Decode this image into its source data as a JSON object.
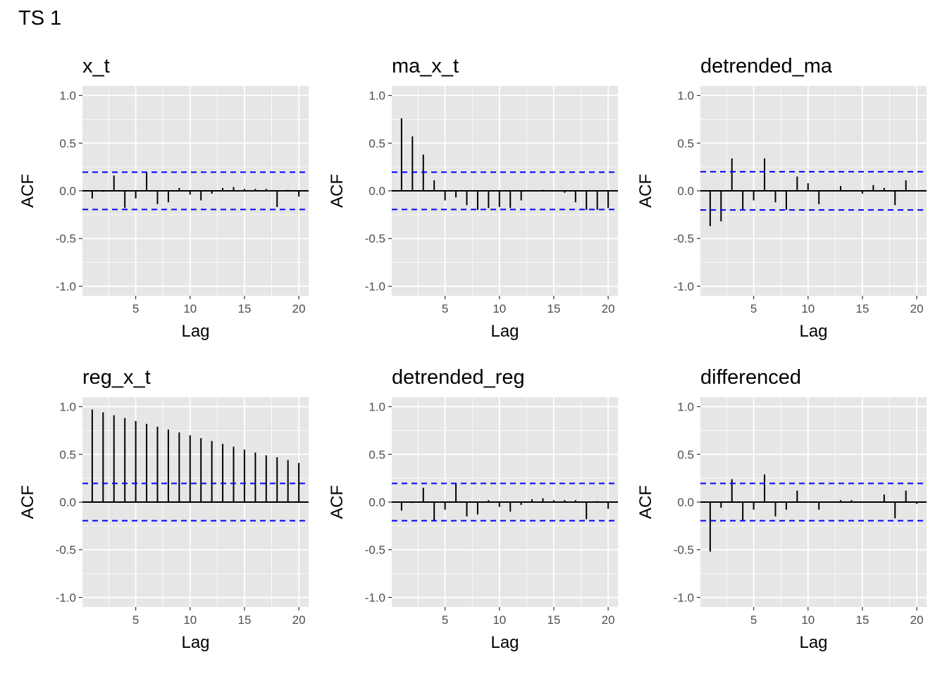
{
  "page": {
    "title": "TS 1"
  },
  "theme": {
    "panel_bg": "#e6e6e6",
    "grid_color": "#ffffff",
    "bar_color": "#000000",
    "ci_color": "#0000ff",
    "text_color": "#000000",
    "tick_text_color": "#4d4d4d"
  },
  "chart_data": [
    {
      "type": "bar",
      "title": "x_t",
      "xlabel": "Lag",
      "ylabel": "ACF",
      "x": [
        1,
        2,
        3,
        4,
        5,
        6,
        7,
        8,
        9,
        10,
        11,
        12,
        13,
        14,
        15,
        16,
        17,
        18,
        19,
        20
      ],
      "values": [
        -0.08,
        -0.01,
        0.16,
        -0.18,
        -0.08,
        0.2,
        -0.14,
        -0.12,
        0.03,
        -0.04,
        -0.1,
        -0.03,
        0.03,
        0.04,
        0.02,
        0.02,
        0.02,
        -0.17,
        0.01,
        -0.06
      ],
      "ci": 0.196,
      "xlim": [
        0.1,
        20.9
      ],
      "ylim": [
        -1.1,
        1.1
      ],
      "xticks": [
        5,
        10,
        15,
        20
      ],
      "xtick_labels": [
        "5",
        "10",
        "15",
        "20"
      ],
      "yticks": [
        -1,
        -0.5,
        0,
        0.5,
        1
      ],
      "ytick_labels": [
        "-1.0",
        "-0.5",
        "0.0",
        "0.5",
        "1.0"
      ],
      "grid": true
    },
    {
      "type": "bar",
      "title": "ma_x_t",
      "xlabel": "Lag",
      "ylabel": "ACF",
      "x": [
        1,
        2,
        3,
        4,
        5,
        6,
        7,
        8,
        9,
        10,
        11,
        12,
        13,
        14,
        15,
        16,
        17,
        18,
        19,
        20
      ],
      "values": [
        0.76,
        0.57,
        0.38,
        0.11,
        -0.1,
        -0.07,
        -0.15,
        -0.2,
        -0.18,
        -0.17,
        -0.18,
        -0.1,
        0.0,
        0.01,
        0.0,
        -0.02,
        -0.12,
        -0.2,
        -0.2,
        -0.18
      ],
      "ci": 0.196,
      "xlim": [
        0.1,
        20.9
      ],
      "ylim": [
        -1.1,
        1.1
      ],
      "xticks": [
        5,
        10,
        15,
        20
      ],
      "xtick_labels": [
        "5",
        "10",
        "15",
        "20"
      ],
      "yticks": [
        -1,
        -0.5,
        0,
        0.5,
        1
      ],
      "ytick_labels": [
        "-1.0",
        "-0.5",
        "0.0",
        "0.5",
        "1.0"
      ],
      "grid": true
    },
    {
      "type": "bar",
      "title": "detrended_ma",
      "xlabel": "Lag",
      "ylabel": "ACF",
      "x": [
        1,
        2,
        3,
        4,
        5,
        6,
        7,
        8,
        9,
        10,
        11,
        12,
        13,
        14,
        15,
        16,
        17,
        18,
        19
      ],
      "values": [
        -0.37,
        -0.32,
        0.34,
        -0.2,
        -0.1,
        0.34,
        -0.12,
        -0.2,
        0.15,
        0.08,
        -0.14,
        0.0,
        0.05,
        0.0,
        -0.03,
        0.06,
        0.03,
        -0.15,
        0.11
      ],
      "ci": 0.2,
      "xlim": [
        0.1,
        20.9
      ],
      "ylim": [
        -1.1,
        1.1
      ],
      "xticks": [
        5,
        10,
        15,
        20
      ],
      "xtick_labels": [
        "5",
        "10",
        "15",
        "20"
      ],
      "yticks": [
        -1,
        -0.5,
        0,
        0.5,
        1
      ],
      "ytick_labels": [
        "-1.0",
        "-0.5",
        "0.0",
        "0.5",
        "1.0"
      ],
      "grid": true
    },
    {
      "type": "bar",
      "title": "reg_x_t",
      "xlabel": "Lag",
      "ylabel": "ACF",
      "x": [
        1,
        2,
        3,
        4,
        5,
        6,
        7,
        8,
        9,
        10,
        11,
        12,
        13,
        14,
        15,
        16,
        17,
        18,
        19,
        20
      ],
      "values": [
        0.97,
        0.94,
        0.91,
        0.88,
        0.85,
        0.82,
        0.79,
        0.76,
        0.73,
        0.7,
        0.67,
        0.64,
        0.61,
        0.58,
        0.55,
        0.52,
        0.49,
        0.47,
        0.44,
        0.41
      ],
      "ci": 0.196,
      "xlim": [
        0.1,
        20.9
      ],
      "ylim": [
        -1.1,
        1.1
      ],
      "xticks": [
        5,
        10,
        15,
        20
      ],
      "xtick_labels": [
        "5",
        "10",
        "15",
        "20"
      ],
      "yticks": [
        -1,
        -0.5,
        0,
        0.5,
        1
      ],
      "ytick_labels": [
        "-1.0",
        "-0.5",
        "0.0",
        "0.5",
        "1.0"
      ],
      "grid": true
    },
    {
      "type": "bar",
      "title": "detrended_reg",
      "xlabel": "Lag",
      "ylabel": "ACF",
      "x": [
        1,
        2,
        3,
        4,
        5,
        6,
        7,
        8,
        9,
        10,
        11,
        12,
        13,
        14,
        15,
        16,
        17,
        18,
        19,
        20
      ],
      "values": [
        -0.09,
        -0.01,
        0.15,
        -0.19,
        -0.08,
        0.2,
        -0.15,
        -0.13,
        0.02,
        -0.05,
        -0.1,
        -0.03,
        0.03,
        0.04,
        0.02,
        0.02,
        0.02,
        -0.18,
        0.01,
        -0.07
      ],
      "ci": 0.196,
      "xlim": [
        0.1,
        20.9
      ],
      "ylim": [
        -1.1,
        1.1
      ],
      "xticks": [
        5,
        10,
        15,
        20
      ],
      "xtick_labels": [
        "5",
        "10",
        "15",
        "20"
      ],
      "yticks": [
        -1,
        -0.5,
        0,
        0.5,
        1
      ],
      "ytick_labels": [
        "-1.0",
        "-0.5",
        "0.0",
        "0.5",
        "1.0"
      ],
      "grid": true
    },
    {
      "type": "bar",
      "title": "differenced",
      "xlabel": "Lag",
      "ylabel": "ACF",
      "x": [
        1,
        2,
        3,
        4,
        5,
        6,
        7,
        8,
        9,
        10,
        11,
        12,
        13,
        14,
        15,
        16,
        17,
        18,
        19,
        20
      ],
      "values": [
        -0.52,
        -0.06,
        0.24,
        -0.19,
        -0.08,
        0.29,
        -0.15,
        -0.08,
        0.12,
        0.0,
        -0.08,
        0.0,
        0.02,
        0.02,
        0.0,
        0.0,
        0.08,
        -0.17,
        0.12,
        -0.02
      ],
      "ci": 0.196,
      "xlim": [
        0.1,
        20.9
      ],
      "ylim": [
        -1.1,
        1.1
      ],
      "xticks": [
        5,
        10,
        15,
        20
      ],
      "xtick_labels": [
        "5",
        "10",
        "15",
        "20"
      ],
      "yticks": [
        -1,
        -0.5,
        0,
        0.5,
        1
      ],
      "ytick_labels": [
        "-1.0",
        "-0.5",
        "0.0",
        "0.5",
        "1.0"
      ],
      "grid": true
    }
  ]
}
